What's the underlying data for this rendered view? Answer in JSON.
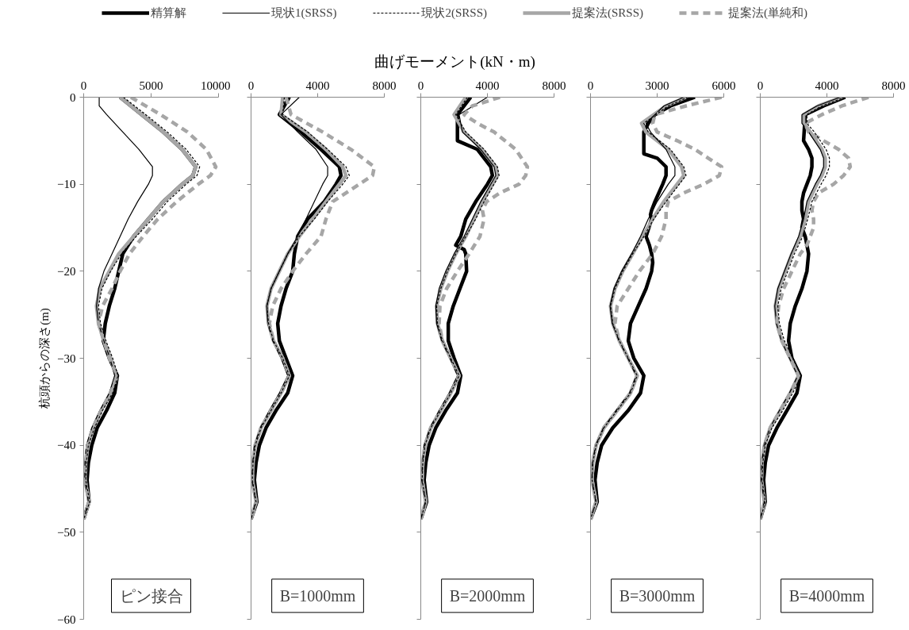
{
  "chart_data": [
    {
      "type": "line",
      "ylabel": "杭頭からの深さ(m)",
      "legend": "top",
      "xlim": [
        0,
        10000
      ],
      "xticks": [
        0,
        5000,
        10000
      ],
      "ylim": [
        -60,
        0
      ],
      "yticks": [
        0,
        -10,
        -20,
        -30,
        -40,
        -50,
        -60
      ],
      "grid": false,
      "annotations": [
        "ピン接合"
      ],
      "series": [
        {
          "name": "精算解",
          "color": "#000000",
          "line_style": "solid",
          "x": [
            2700,
            4300,
            5900,
            7300,
            8300,
            8100,
            7300,
            5900,
            4800,
            3700,
            2900,
            2600,
            2300,
            1900,
            1600,
            1450,
            1900,
            2500,
            2300,
            1700,
            1000,
            600,
            350,
            250,
            400,
            0
          ],
          "values": [
            0,
            -2,
            -4,
            -6,
            -8,
            -9,
            -10,
            -12,
            -14,
            -16,
            -18,
            -20,
            -22,
            -24,
            -26,
            -28,
            -30,
            -32,
            -34,
            -36,
            -38,
            -40,
            -42,
            -44,
            -46.5,
            -48.5
          ]
        },
        {
          "name": "現状1(SRSS)",
          "color": "#000000",
          "line_style": "solid",
          "x": [
            1150,
            1150,
            1700,
            2900,
            4100,
            5100,
            5100,
            4800,
            4000,
            3300,
            2700,
            2100,
            1500,
            1100,
            950,
            1100,
            1500,
            1950,
            2300,
            1900,
            1200,
            600,
            200,
            100,
            80,
            350,
            0
          ],
          "values": [
            0,
            -1,
            -2,
            -4,
            -6,
            -8,
            -9,
            -10,
            -12,
            -14,
            -16,
            -18,
            -20,
            -22,
            -24,
            -26,
            -28,
            -30,
            -32,
            -34,
            -36,
            -38,
            -40,
            -42,
            -44,
            -46.5,
            -48.5
          ]
        },
        {
          "name": "現状2(SRSS)",
          "color": "#000000",
          "line_style": "dashed",
          "x": [
            2950,
            4600,
            6200,
            7600,
            8600,
            8400,
            7600,
            6200,
            5100,
            3900,
            2800,
            2000,
            1350,
            1100,
            1250,
            1650,
            2150,
            2550,
            2150,
            1400,
            800,
            350,
            200,
            150,
            450,
            0
          ],
          "values": [
            0,
            -2,
            -4,
            -6,
            -8,
            -9,
            -10,
            -12,
            -14,
            -16,
            -18,
            -20,
            -22,
            -24,
            -26,
            -28,
            -30,
            -32,
            -34,
            -36,
            -38,
            -40,
            -42,
            -44,
            -46.5,
            -48.5
          ]
        },
        {
          "name": "提案法(SRSS)",
          "color": "#a6a6a6",
          "line_style": "solid",
          "x": [
            2700,
            4300,
            5900,
            7300,
            8300,
            8100,
            7300,
            5900,
            4800,
            3700,
            2600,
            1900,
            1200,
            950,
            1100,
            1500,
            2000,
            2400,
            2000,
            1300,
            700,
            300,
            150,
            100,
            400,
            0
          ],
          "values": [
            0,
            -2,
            -4,
            -6,
            -8,
            -9,
            -10,
            -12,
            -14,
            -16,
            -18,
            -20,
            -22,
            -24,
            -26,
            -28,
            -30,
            -32,
            -34,
            -36,
            -38,
            -40,
            -42,
            -44,
            -46.5,
            -48.5
          ]
        },
        {
          "name": "提案法(単純和)",
          "color": "#a6a6a6",
          "line_style": "dashed",
          "x": [
            3500,
            5700,
            7700,
            9100,
            9800,
            9400,
            8500,
            6900,
            5500,
            4400,
            3400,
            2700,
            2100,
            1400,
            1100,
            1500,
            1900,
            2500,
            2000,
            1300,
            700,
            300,
            150,
            100,
            400,
            0
          ],
          "values": [
            0,
            -2,
            -4,
            -6,
            -8,
            -9,
            -10,
            -12,
            -14,
            -16,
            -18,
            -20,
            -22,
            -24,
            -26,
            -28,
            -30,
            -32,
            -34,
            -36,
            -38,
            -40,
            -42,
            -44,
            -46.5,
            -48.5
          ]
        }
      ]
    },
    {
      "type": "line",
      "xlim": [
        0,
        8000
      ],
      "xticks": [
        0,
        4000,
        8000
      ],
      "ylim": [
        -60,
        0
      ],
      "yticks": [
        0,
        -10,
        -20,
        -30,
        -40,
        -50,
        -60
      ],
      "tick_labels": "x",
      "grid": false,
      "annotations": [
        "B=1000mm"
      ],
      "series": [
        {
          "color": "#000000",
          "line_style": "solid",
          "x": [
            2300,
            1700,
            3000,
            4200,
            5300,
            5400,
            5100,
            4400,
            3400,
            2800,
            2600,
            2500,
            2100,
            1800,
            1600,
            1700,
            2100,
            2500,
            2200,
            1500,
            900,
            500,
            300,
            200,
            350,
            0
          ],
          "values": [
            0,
            -2,
            -4,
            -6,
            -8,
            -9,
            -10,
            -12,
            -14,
            -16,
            -18,
            -20,
            -22,
            -24,
            -26,
            -28,
            -30,
            -32,
            -34,
            -36,
            -38,
            -40,
            -42,
            -44,
            -46.5,
            -48.5
          ]
        },
        {
          "color": "#000000",
          "line_style": "solid",
          "x": [
            2900,
            1800,
            2800,
            3900,
            4600,
            4600,
            4300,
            3800,
            3300,
            2800,
            2200,
            1700,
            1200,
            950,
            1000,
            1300,
            1800,
            2200,
            1700,
            1100,
            550,
            200,
            100,
            60,
            280,
            0
          ],
          "values": [
            0,
            -2,
            -4,
            -6,
            -8,
            -9,
            -10,
            -12,
            -14,
            -16,
            -18,
            -20,
            -22,
            -24,
            -26,
            -28,
            -30,
            -32,
            -34,
            -36,
            -38,
            -40,
            -42,
            -44,
            -46.5,
            -48.5
          ]
        },
        {
          "color": "#000000",
          "line_style": "dashed",
          "x": [
            2000,
            1900,
            3400,
            4600,
            5700,
            5900,
            5500,
            4600,
            3800,
            2900,
            2200,
            1700,
            1200,
            950,
            1050,
            1350,
            1900,
            2300,
            1800,
            1200,
            600,
            250,
            120,
            80,
            300,
            0
          ],
          "values": [
            0,
            -2,
            -4,
            -6,
            -8,
            -9,
            -10,
            -12,
            -14,
            -16,
            -18,
            -20,
            -22,
            -24,
            -26,
            -28,
            -30,
            -32,
            -34,
            -36,
            -38,
            -40,
            -42,
            -44,
            -46.5,
            -48.5
          ]
        },
        {
          "color": "#a6a6a6",
          "line_style": "solid",
          "x": [
            1900,
            1800,
            3300,
            4500,
            5500,
            5700,
            5300,
            4500,
            3700,
            2900,
            2200,
            1700,
            1200,
            950,
            1050,
            1350,
            1900,
            2300,
            1800,
            1200,
            600,
            250,
            120,
            80,
            300,
            0
          ],
          "values": [
            0,
            -2,
            -4,
            -6,
            -8,
            -9,
            -10,
            -12,
            -14,
            -16,
            -18,
            -20,
            -22,
            -24,
            -26,
            -28,
            -30,
            -32,
            -34,
            -36,
            -38,
            -40,
            -42,
            -44,
            -46.5,
            -48.5
          ]
        },
        {
          "color": "#a6a6a6",
          "line_style": "dashed",
          "x": [
            2100,
            2400,
            4300,
            6000,
            7400,
            7300,
            6500,
            4900,
            4500,
            4200,
            3300,
            2500,
            1800,
            1300,
            1100,
            1350,
            1900,
            2300,
            1800,
            1200,
            600,
            250,
            120,
            80,
            300,
            0
          ],
          "values": [
            0,
            -2,
            -4,
            -6,
            -8,
            -9,
            -10,
            -12,
            -14,
            -16,
            -18,
            -20,
            -22,
            -24,
            -26,
            -28,
            -30,
            -32,
            -34,
            -36,
            -38,
            -40,
            -42,
            -44,
            -46.5,
            -48.5
          ]
        }
      ]
    },
    {
      "type": "line",
      "xlabel": "曲げモーメント(kN・m)",
      "xlim": [
        0,
        8000
      ],
      "xticks": [
        0,
        4000,
        8000
      ],
      "ylim": [
        -60,
        0
      ],
      "yticks": [
        0,
        -10,
        -20,
        -30,
        -40,
        -50,
        -60
      ],
      "tick_labels": "x",
      "grid": false,
      "annotations": [
        "B=2000mm"
      ],
      "series": [
        {
          "color": "#000000",
          "line_style": "solid",
          "x": [
            3000,
            2200,
            2200,
            3400,
            4200,
            4300,
            4000,
            3300,
            2700,
            2400,
            2100,
            2600,
            2700,
            2750,
            2350,
            1950,
            1650,
            1650,
            2000,
            2400,
            2200,
            1500,
            900,
            500,
            300,
            200,
            350,
            0
          ],
          "values": [
            0,
            -2,
            -5,
            -6,
            -8,
            -9,
            -10,
            -12,
            -14,
            -16,
            -17,
            -17.5,
            -18,
            -20,
            -22,
            -24,
            -26,
            -28,
            -30,
            -32,
            -34,
            -36,
            -38,
            -40,
            -42,
            -44,
            -46.5,
            -48.5
          ]
        },
        {
          "color": "#000000",
          "line_style": "solid",
          "x": [
            4000,
            2300,
            2500,
            3600,
            4400,
            4500,
            4200,
            3600,
            3100,
            2600,
            2000,
            1500,
            1100,
            900,
            950,
            1250,
            1750,
            2200,
            1700,
            1100,
            550,
            200,
            100,
            60,
            280,
            0
          ],
          "values": [
            0,
            -2,
            -4,
            -6,
            -8,
            -9,
            -10,
            -12,
            -14,
            -16,
            -18,
            -20,
            -22,
            -24,
            -26,
            -28,
            -30,
            -32,
            -34,
            -36,
            -38,
            -40,
            -42,
            -44,
            -46.5,
            -48.5
          ]
        },
        {
          "color": "#000000",
          "line_style": "dashed",
          "x": [
            2800,
            2100,
            2700,
            3800,
            4600,
            4700,
            4400,
            3800,
            3300,
            2700,
            2100,
            1600,
            1200,
            950,
            1000,
            1300,
            1800,
            2300,
            1800,
            1200,
            600,
            250,
            120,
            80,
            300,
            0
          ],
          "values": [
            0,
            -2,
            -4,
            -6,
            -8,
            -9,
            -10,
            -12,
            -14,
            -16,
            -18,
            -20,
            -22,
            -24,
            -26,
            -28,
            -30,
            -32,
            -34,
            -36,
            -38,
            -40,
            -42,
            -44,
            -46.5,
            -48.5
          ]
        },
        {
          "color": "#a6a6a6",
          "line_style": "solid",
          "x": [
            2700,
            2000,
            2600,
            3700,
            4500,
            4600,
            4300,
            3700,
            3200,
            2700,
            2100,
            1600,
            1200,
            950,
            1000,
            1300,
            1800,
            2300,
            1800,
            1200,
            600,
            250,
            120,
            80,
            300,
            0
          ],
          "values": [
            0,
            -2,
            -4,
            -6,
            -8,
            -9,
            -10,
            -12,
            -14,
            -16,
            -18,
            -20,
            -22,
            -24,
            -26,
            -28,
            -30,
            -32,
            -34,
            -36,
            -38,
            -40,
            -42,
            -44,
            -46.5,
            -48.5
          ]
        },
        {
          "color": "#a6a6a6",
          "line_style": "dashed",
          "x": [
            4750,
            3100,
            2600,
            3400,
            4400,
            5700,
            6400,
            6300,
            5900,
            4750,
            3950,
            3700,
            3800,
            3550,
            2900,
            2200,
            1550,
            1150,
            1100,
            1300,
            1800,
            2300,
            1800,
            1200,
            600,
            250,
            120,
            80,
            300,
            0
          ],
          "values": [
            0,
            -1,
            -2,
            -3,
            -4,
            -6,
            -8,
            -9,
            -10,
            -11,
            -12,
            -13,
            -14,
            -16,
            -18,
            -20,
            -22,
            -24,
            -26,
            -28,
            -30,
            -32,
            -34,
            -36,
            -38,
            -40,
            -42,
            -44,
            -46.5,
            -48.5
          ]
        }
      ]
    },
    {
      "type": "line",
      "xlim": [
        0,
        6000
      ],
      "xticks": [
        0,
        3000,
        6000
      ],
      "ylim": [
        -60,
        0
      ],
      "yticks": [
        0,
        -10,
        -20,
        -30,
        -40,
        -50,
        -60
      ],
      "tick_labels": "x",
      "grid": false,
      "annotations": [
        "B=3000mm"
      ],
      "series": [
        {
          "color": "#000000",
          "line_style": "solid",
          "x": [
            4700,
            3600,
            2900,
            2600,
            2400,
            2400,
            3000,
            3400,
            3400,
            3250,
            2900,
            2750,
            2700,
            2750,
            2500,
            2650,
            2750,
            2800,
            2750,
            2500,
            2150,
            1800,
            1700,
            1950,
            2400,
            2250,
            1700,
            1000,
            500,
            300,
            200,
            300,
            0
          ],
          "values": [
            0,
            -1,
            -2,
            -3,
            -4,
            -6.5,
            -7,
            -8,
            -9,
            -10,
            -12,
            -13,
            -13.5,
            -14,
            -16,
            -17,
            -18,
            -19,
            -20,
            -22,
            -24,
            -26,
            -28,
            -30,
            -32,
            -34,
            -36,
            -38,
            -40,
            -42,
            -44,
            -46.5,
            -48.5
          ]
        },
        {
          "color": "#000000",
          "line_style": "solid",
          "x": [
            4200,
            3300,
            2500,
            2700,
            3400,
            3800,
            3800,
            3500,
            3000,
            2600,
            2250,
            1850,
            1400,
            1050,
            880,
            980,
            1280,
            1680,
            2050,
            1750,
            1150,
            580,
            230,
            90,
            60,
            240,
            0
          ],
          "values": [
            0,
            -1,
            -3,
            -4,
            -6,
            -8,
            -9,
            -10,
            -12,
            -14,
            -16,
            -18,
            -20,
            -22,
            -24,
            -26,
            -28,
            -30,
            -32,
            -34,
            -36,
            -38,
            -40,
            -42,
            -44,
            -46.5,
            -48.5
          ]
        },
        {
          "color": "#000000",
          "line_style": "dashed",
          "x": [
            4400,
            3500,
            2400,
            2600,
            3600,
            4200,
            4300,
            4000,
            3400,
            2850,
            2400,
            1900,
            1450,
            1100,
            900,
            1000,
            1300,
            1700,
            2100,
            1800,
            1200,
            600,
            250,
            100,
            70,
            250,
            0
          ],
          "values": [
            0,
            -1,
            -3,
            -4,
            -6,
            -8,
            -9,
            -10,
            -12,
            -14,
            -16,
            -18,
            -20,
            -22,
            -24,
            -26,
            -28,
            -30,
            -32,
            -34,
            -36,
            -38,
            -40,
            -42,
            -44,
            -46.5,
            -48.5
          ]
        },
        {
          "color": "#a6a6a6",
          "line_style": "solid",
          "x": [
            4300,
            3400,
            2300,
            2500,
            3500,
            4100,
            4200,
            3900,
            3300,
            2800,
            2350,
            1900,
            1450,
            1100,
            900,
            1000,
            1300,
            1700,
            2100,
            1800,
            1200,
            600,
            250,
            100,
            70,
            250,
            0
          ],
          "values": [
            0,
            -1,
            -3,
            -4,
            -6,
            -8,
            -9,
            -10,
            -12,
            -14,
            -16,
            -18,
            -20,
            -22,
            -24,
            -26,
            -28,
            -30,
            -32,
            -34,
            -36,
            -38,
            -40,
            -42,
            -44,
            -46.5,
            -48.5
          ]
        },
        {
          "color": "#a6a6a6",
          "line_style": "dashed",
          "x": [
            5900,
            4300,
            2900,
            2800,
            3000,
            3900,
            4700,
            5300,
            5900,
            5800,
            5100,
            4200,
            3500,
            3400,
            3400,
            3200,
            2800,
            2200,
            1700,
            1200,
            1100,
            1300,
            1700,
            2100,
            1800,
            1200,
            600,
            250,
            100,
            70,
            250,
            0
          ],
          "values": [
            0,
            -1,
            -2,
            -3,
            -4,
            -5,
            -6,
            -7,
            -8,
            -9,
            -10,
            -11,
            -12,
            -13,
            -14,
            -16,
            -18,
            -20,
            -22,
            -24,
            -26,
            -28,
            -30,
            -32,
            -34,
            -36,
            -38,
            -40,
            -42,
            -44,
            -46.5,
            -48.5
          ]
        }
      ]
    },
    {
      "type": "line",
      "xlim": [
        0,
        8000
      ],
      "xticks": [
        0,
        4000,
        8000
      ],
      "ylim": [
        -60,
        0
      ],
      "yticks": [
        0,
        -10,
        -20,
        -30,
        -40,
        -50,
        -60
      ],
      "tick_labels": "x",
      "grid": false,
      "annotations": [
        "B=4000mm"
      ],
      "series": [
        {
          "color": "#000000",
          "line_style": "solid",
          "x": [
            5100,
            3800,
            2700,
            2600,
            2900,
            3100,
            3100,
            3000,
            2800,
            2600,
            2500,
            2500,
            2600,
            2500,
            2700,
            2800,
            2900,
            2800,
            2500,
            2100,
            1800,
            1700,
            1900,
            2400,
            2200,
            1600,
            1000,
            500,
            300,
            200,
            300,
            0
          ],
          "values": [
            0,
            -1,
            -2,
            -5,
            -6,
            -7,
            -8,
            -9,
            -10,
            -11,
            -12,
            -13,
            -14,
            -15,
            -16,
            -17,
            -18,
            -20,
            -22,
            -24,
            -26,
            -28,
            -30,
            -32,
            -34,
            -36,
            -38,
            -40,
            -42,
            -44,
            -46.5,
            -48.5
          ]
        },
        {
          "color": "#000000",
          "line_style": "solid",
          "x": [
            4800,
            3400,
            2500,
            2500,
            2900,
            3600,
            3800,
            3800,
            3600,
            3300,
            2800,
            2600,
            2300,
            1850,
            1450,
            1050,
            870,
            970,
            1270,
            1750,
            2250,
            1750,
            1150,
            580,
            230,
            90,
            60,
            240,
            0
          ],
          "values": [
            0,
            -1,
            -2,
            -3,
            -4,
            -6,
            -7,
            -8,
            -9,
            -10,
            -12,
            -14,
            -16,
            -18,
            -20,
            -22,
            -24,
            -26,
            -28,
            -30,
            -32,
            -34,
            -36,
            -38,
            -40,
            -42,
            -44,
            -46.5,
            -48.5
          ]
        },
        {
          "color": "#000000",
          "line_style": "dashed",
          "x": [
            5100,
            3700,
            2800,
            2800,
            3250,
            3950,
            4150,
            4150,
            3950,
            3650,
            3100,
            2850,
            2550,
            2050,
            1650,
            1250,
            1050,
            1150,
            1450,
            1950,
            2450,
            1950,
            1350,
            700,
            300,
            150,
            100,
            300,
            0
          ],
          "values": [
            0,
            -1,
            -2,
            -3,
            -4,
            -6,
            -7,
            -8,
            -9,
            -10,
            -12,
            -14,
            -16,
            -18,
            -20,
            -22,
            -24,
            -26,
            -28,
            -30,
            -32,
            -34,
            -36,
            -38,
            -40,
            -42,
            -44,
            -46.5,
            -48.5
          ]
        },
        {
          "color": "#a6a6a6",
          "line_style": "solid",
          "x": [
            4900,
            3500,
            2600,
            2600,
            3000,
            3700,
            3900,
            3900,
            3700,
            3400,
            2900,
            2700,
            2400,
            1900,
            1500,
            1100,
            900,
            1000,
            1300,
            1800,
            2300,
            1800,
            1200,
            600,
            250,
            100,
            70,
            250,
            0
          ],
          "values": [
            0,
            -1,
            -2,
            -3,
            -4,
            -6,
            -7,
            -8,
            -9,
            -10,
            -12,
            -14,
            -16,
            -18,
            -20,
            -22,
            -24,
            -26,
            -28,
            -30,
            -32,
            -34,
            -36,
            -38,
            -40,
            -42,
            -44,
            -46.5,
            -48.5
          ]
        },
        {
          "color": "#a6a6a6",
          "line_style": "dashed",
          "x": [
            6500,
            4900,
            3700,
            2700,
            2900,
            3800,
            4700,
            5300,
            5400,
            5000,
            4400,
            3500,
            3200,
            3100,
            3200,
            3200,
            3000,
            2800,
            2400,
            1900,
            1400,
            1100,
            1000,
            1300,
            1800,
            2300,
            1800,
            1200,
            600,
            250,
            100,
            70,
            250,
            0
          ],
          "values": [
            0,
            -1,
            -2,
            -3,
            -4,
            -5,
            -6,
            -7,
            -8,
            -9,
            -10,
            -11,
            -12,
            -13,
            -14,
            -15,
            -16,
            -17,
            -18,
            -20,
            -22,
            -24,
            -26,
            -28,
            -30,
            -32,
            -34,
            -36,
            -38,
            -40,
            -42,
            -44,
            -46.5,
            -48.5
          ]
        }
      ]
    }
  ]
}
